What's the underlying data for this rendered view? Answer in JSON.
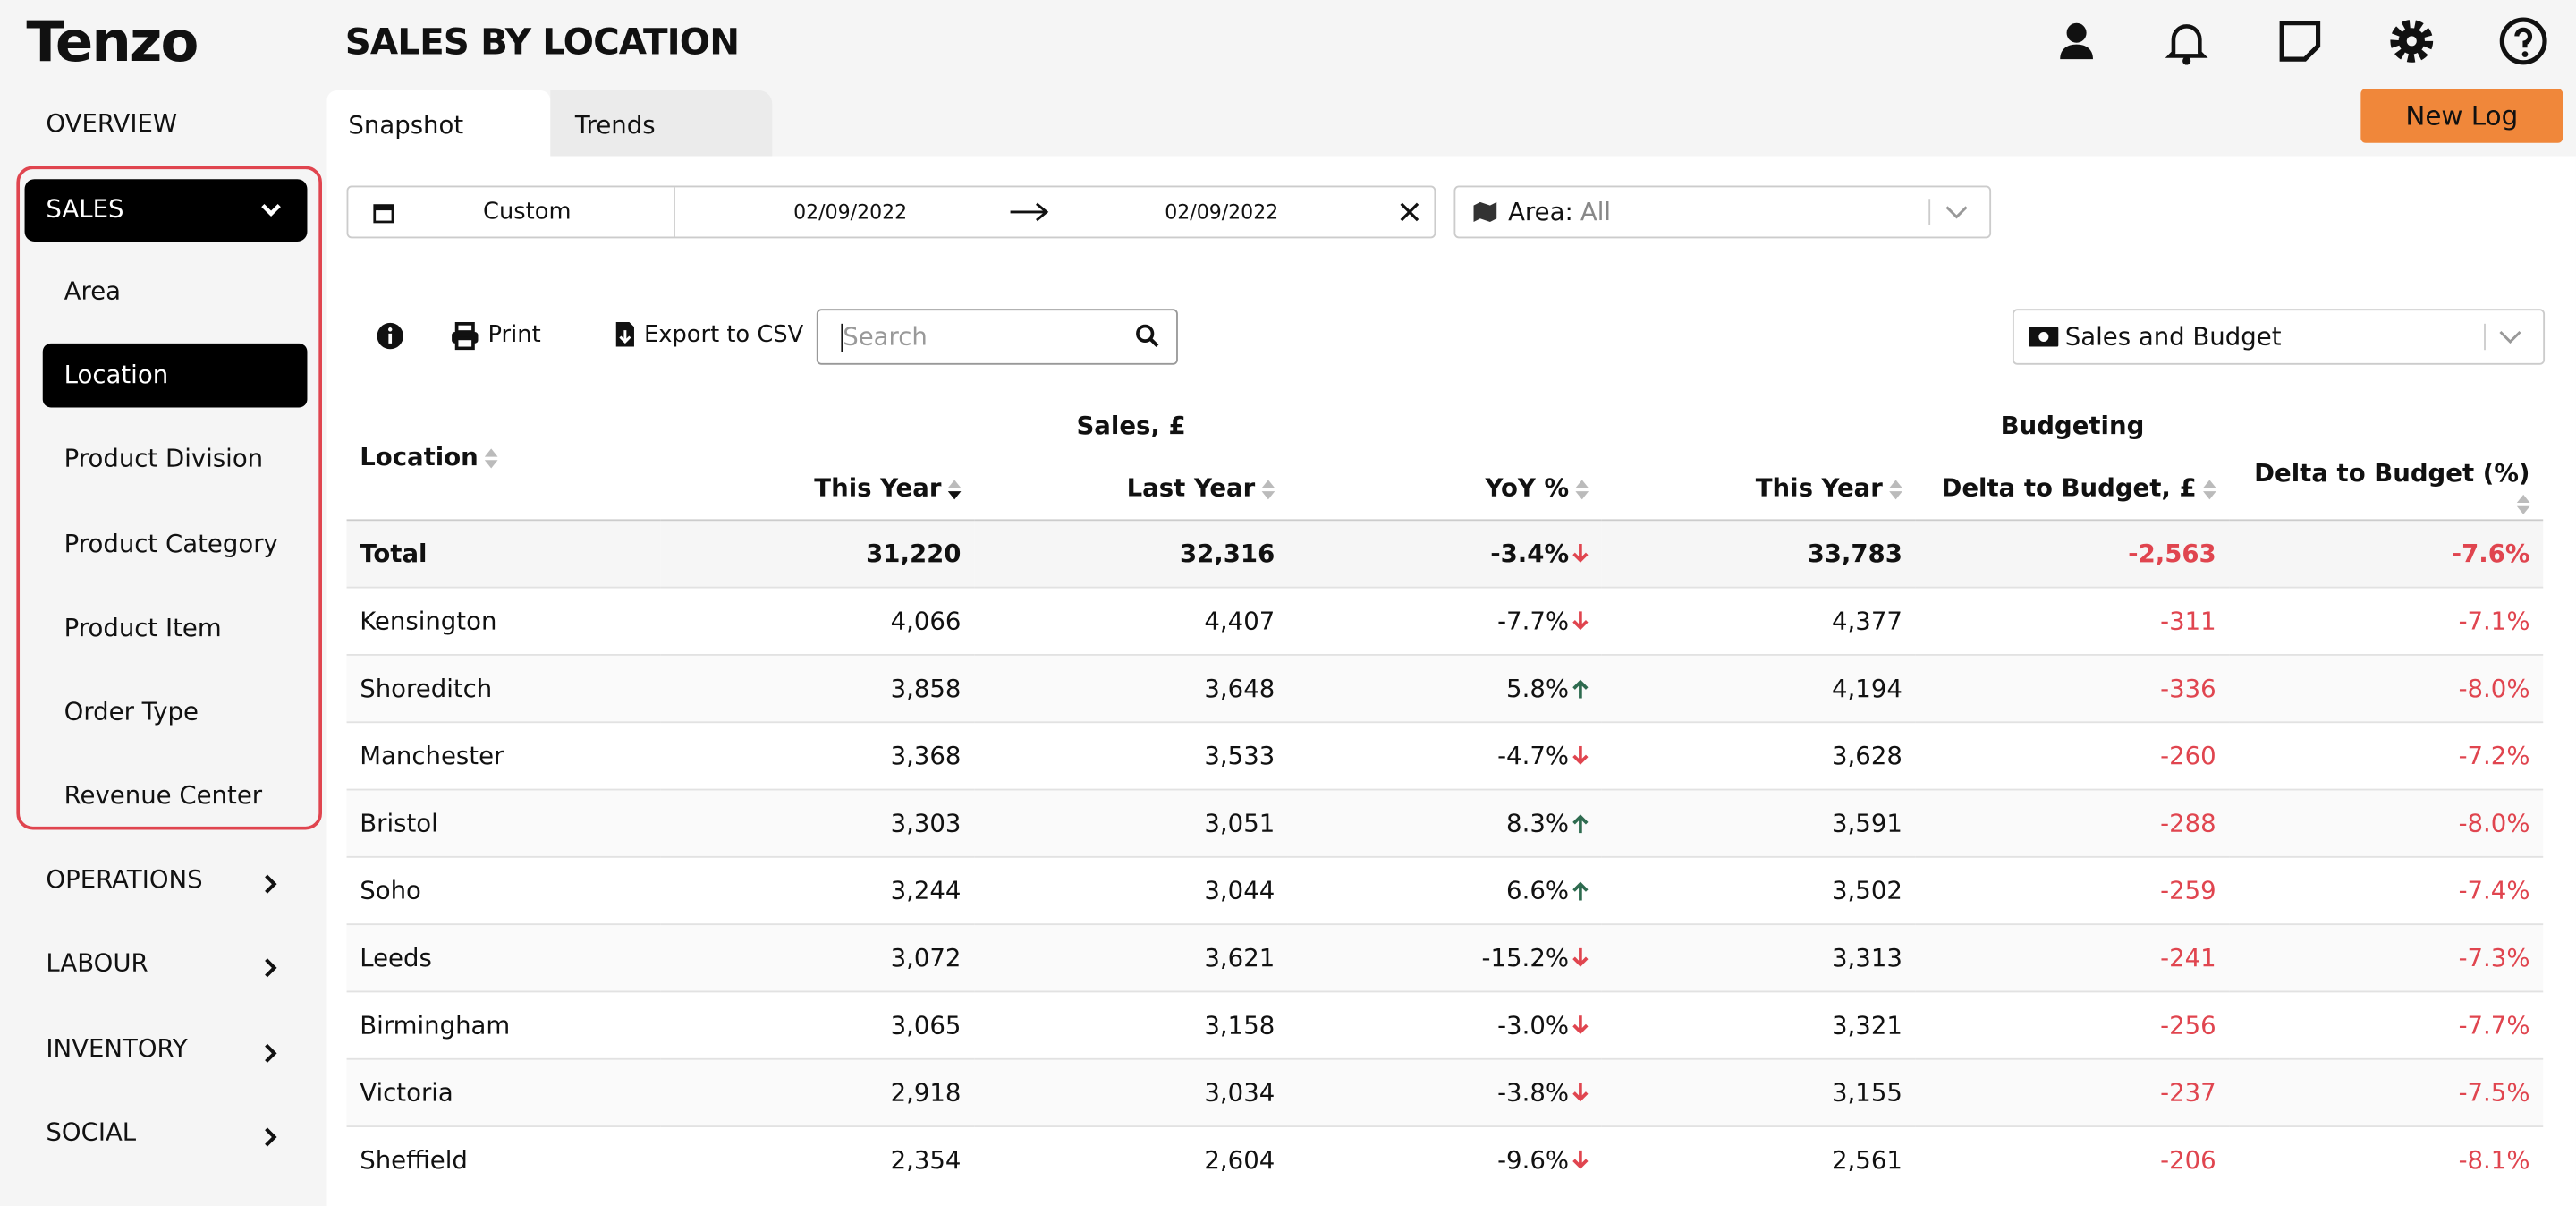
{
  "brand": "Tenzo",
  "title": "SALES BY LOCATION",
  "nav": {
    "overview": "OVERVIEW",
    "sales": "SALES",
    "sales_items": [
      "Area",
      "Location",
      "Product Division",
      "Product Category",
      "Product Item",
      "Order Type",
      "Revenue Center"
    ],
    "sections": [
      "OPERATIONS",
      "LABOUR",
      "INVENTORY",
      "SOCIAL"
    ]
  },
  "tabs": [
    "Snapshot",
    "Trends"
  ],
  "new_log": "New Log",
  "filters": {
    "range": "Custom",
    "start": "02/09/2022",
    "end": "02/09/2022",
    "area_label": "Area:",
    "area_value": "All"
  },
  "toolbar": {
    "print": "Print",
    "export": "Export to CSV",
    "search_placeholder": "Search",
    "view": "Sales and Budget"
  },
  "table": {
    "groups": [
      "Sales, £",
      "Budgeting"
    ],
    "columns": [
      "Location",
      "This Year",
      "Last Year",
      "YoY %",
      "This Year",
      "Delta to Budget, £",
      "Delta to Budget (%)"
    ],
    "rows": [
      [
        "Total",
        "31,220",
        "32,316",
        "-3.4%",
        "33,783",
        "-2,563",
        "-7.6%"
      ],
      [
        "Kensington",
        "4,066",
        "4,407",
        "-7.7%",
        "4,377",
        "-311",
        "-7.1%"
      ],
      [
        "Shoreditch",
        "3,858",
        "3,648",
        "5.8%",
        "4,194",
        "-336",
        "-8.0%"
      ],
      [
        "Manchester",
        "3,368",
        "3,533",
        "-4.7%",
        "3,628",
        "-260",
        "-7.2%"
      ],
      [
        "Bristol",
        "3,303",
        "3,051",
        "8.3%",
        "3,591",
        "-288",
        "-8.0%"
      ],
      [
        "Soho",
        "3,244",
        "3,044",
        "6.6%",
        "3,502",
        "-259",
        "-7.4%"
      ],
      [
        "Leeds",
        "3,072",
        "3,621",
        "-15.2%",
        "3,313",
        "-241",
        "-7.3%"
      ],
      [
        "Birmingham",
        "3,065",
        "3,158",
        "-3.0%",
        "3,321",
        "-256",
        "-7.7%"
      ],
      [
        "Victoria",
        "2,918",
        "3,034",
        "-3.8%",
        "3,155",
        "-237",
        "-7.5%"
      ],
      [
        "Sheffield",
        "2,354",
        "2,604",
        "-9.6%",
        "2,561",
        "-206",
        "-8.1%"
      ]
    ]
  }
}
